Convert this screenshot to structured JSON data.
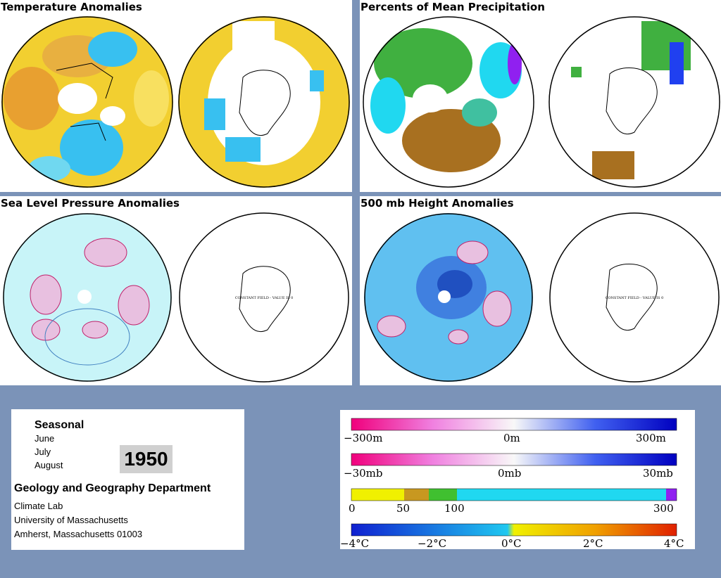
{
  "panels": {
    "temperature": {
      "title": "Temperature Anomalies"
    },
    "precipitation": {
      "title": "Percents of Mean Precipitation"
    },
    "slp": {
      "title": "Sea Level Pressure Anomalies",
      "constant_text": "CONSTANT FIELD - VALUE IS 0"
    },
    "height500": {
      "title": "500 mb Height Anomalies",
      "constant_text": "CONSTANT FIELD - VALUE IS 0"
    }
  },
  "info": {
    "season_title": "Seasonal",
    "months": [
      "June",
      "July",
      "August"
    ],
    "year": "1950",
    "department": "Geology and Geography Department",
    "address": [
      "Climate Lab",
      "University of Massachusetts",
      "Amherst, Massachusetts 01003"
    ]
  },
  "legends": {
    "height": {
      "labels": [
        "−300m",
        "0m",
        "300m"
      ],
      "colors": [
        "#f0007c",
        "#f8f8f8",
        "#0000c0"
      ]
    },
    "pressure": {
      "labels": [
        "−30mb",
        "0mb",
        "30mb"
      ],
      "colors": [
        "#f0007c",
        "#f8f8f8",
        "#0000c0"
      ]
    },
    "precip": {
      "labels": [
        "0",
        "50",
        "100",
        "300"
      ],
      "colors": [
        "#f0f000",
        "#a87020",
        "#40c030",
        "#20d8f0",
        "#9020f0"
      ]
    },
    "temp": {
      "labels": [
        "−4°C",
        "−2°C",
        "0°C",
        "2°C",
        "4°C"
      ],
      "colors": [
        "#1020d0",
        "#20c8f0",
        "#f0f000",
        "#f08000",
        "#e02000"
      ]
    }
  }
}
